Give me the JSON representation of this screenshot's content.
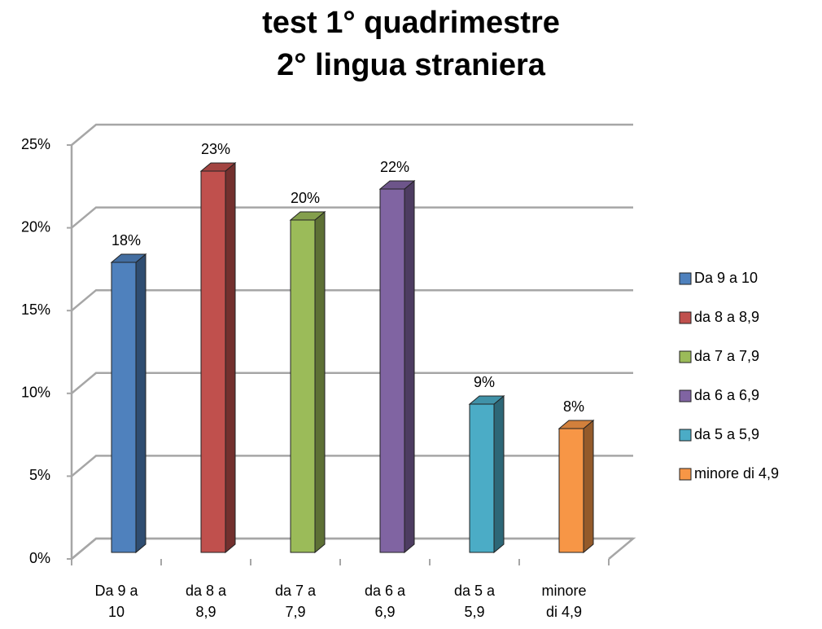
{
  "chart_data": {
    "type": "bar3d",
    "title": "test 1° quadrimestre",
    "subtitle": "2° lingua straniera",
    "categories": [
      "Da 9 a 10",
      "da 8 a 8,9",
      "da 7 a 7,9",
      "da 6 a 6,9",
      "da 5 a 5,9",
      "minore di 4,9"
    ],
    "values": [
      17.8,
      23.4,
      20.4,
      22.3,
      9.1,
      7.6
    ],
    "value_labels": [
      "18%",
      "23%",
      "20%",
      "22%",
      "9%",
      "8%"
    ],
    "colors": [
      "#4f81bd",
      "#c0504d",
      "#9bbb59",
      "#8064a2",
      "#4bacc6",
      "#f79646"
    ],
    "ylim": [
      0,
      25
    ],
    "yticks": [
      {
        "value": 0,
        "label": "0%"
      },
      {
        "value": 5,
        "label": "5%"
      },
      {
        "value": 10,
        "label": "10%"
      },
      {
        "value": 15,
        "label": "15%"
      },
      {
        "value": 20,
        "label": "20%"
      },
      {
        "value": 25,
        "label": "25%"
      }
    ],
    "grid": true,
    "legend": "right"
  }
}
